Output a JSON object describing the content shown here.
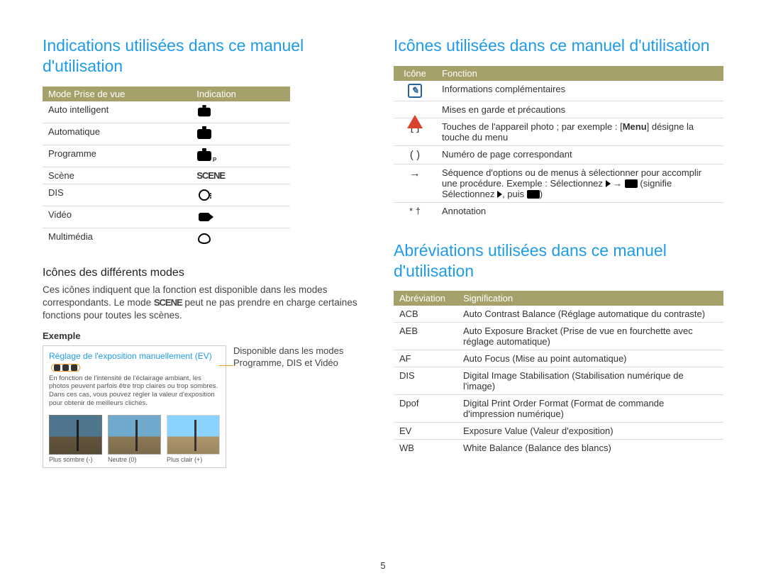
{
  "page_number": "5",
  "left": {
    "heading": "Indications utilisées dans ce manuel d'utilisation",
    "modes_table": {
      "header_col1": "Mode Prise de vue",
      "header_col2": "Indication",
      "rows": [
        {
          "label": "Auto intelligent",
          "icon": "smart-camera"
        },
        {
          "label": "Automatique",
          "icon": "camera"
        },
        {
          "label": "Programme",
          "icon": "camera-p"
        },
        {
          "label": "Scène",
          "icon": "scene"
        },
        {
          "label": "DIS",
          "icon": "hand"
        },
        {
          "label": "Vidéo",
          "icon": "video"
        },
        {
          "label": "Multimédia",
          "icon": "palette"
        }
      ]
    },
    "sub_heading": "Icônes des différents modes",
    "body_text_1": "Ces icônes indiquent que la fonction est disponible dans les modes correspondants. Le mode ",
    "body_text_scene": "SCENE",
    "body_text_2": " peut ne pas prendre en charge certaines fonctions pour toutes les scènes.",
    "exemple_label": "Exemple",
    "exemple_title": "Réglage de l'exposition manuellement (EV)",
    "exemple_small": "En fonction de l'intensité de l'éclairage ambiant, les photos peuvent parfois être trop claires ou trop sombres. Dans ces cas, vous pouvez régler la valeur d'exposition pour obtenir de meilleurs clichés.",
    "thumbs": [
      {
        "caption": "Plus sombre (-)"
      },
      {
        "caption": "Neutre (0)"
      },
      {
        "caption": "Plus clair (+)"
      }
    ],
    "side_caption": "Disponible dans les modes Programme, DIS et Vidéo"
  },
  "right": {
    "heading1": "Icônes utilisées dans ce manuel d'utilisation",
    "icons_table": {
      "header_col1": "Icône",
      "header_col2": "Fonction",
      "rows": [
        {
          "icon": "note",
          "text": "Informations complémentaires"
        },
        {
          "icon": "warn",
          "text": "Mises en garde et précautions"
        },
        {
          "icon": "brackets",
          "text_html": "Touches de l'appareil photo ; par exemple : [<b>Menu</b>] désigne la touche du menu"
        },
        {
          "icon": "paren",
          "text": "Numéro de page correspondant"
        },
        {
          "icon": "arrow",
          "text_html": "Séquence d'options ou de menus à sélectionner pour accomplir une procédure. Exemple : Sélectionnez <span class='arrow-r'></span> &rarr; <span class='dotpad'></span> (signifie Sélectionnez <span class='arrow-r'></span>, puis <span class='dotpad'></span>)"
        },
        {
          "icon": "ast",
          "text": "Annotation"
        }
      ]
    },
    "heading2": "Abréviations utilisées dans ce manuel d'utilisation",
    "abbr_table": {
      "header_col1": "Abréviation",
      "header_col2": "Signification",
      "rows": [
        {
          "abbr": "ACB",
          "def": "Auto Contrast Balance (Réglage automatique du contraste)"
        },
        {
          "abbr": "AEB",
          "def": "Auto Exposure Bracket (Prise de vue en fourchette avec réglage automatique)"
        },
        {
          "abbr": "AF",
          "def": "Auto Focus (Mise au point automatique)"
        },
        {
          "abbr": "DIS",
          "def": "Digital Image Stabilisation (Stabilisation numérique de l'image)"
        },
        {
          "abbr": "Dpof",
          "def": "Digital Print Order Format (Format de commande d'impression numérique)"
        },
        {
          "abbr": "EV",
          "def": "Exposure Value (Valeur d'exposition)"
        },
        {
          "abbr": "WB",
          "def": "White Balance (Balance des blancs)"
        }
      ]
    }
  },
  "colors": {
    "heading": "#1e9be9",
    "table_header_bg": "#a6a06a",
    "highlight_border": "#f29b2e",
    "note_icon": "#27629c",
    "warn_icon": "#d9432b"
  }
}
